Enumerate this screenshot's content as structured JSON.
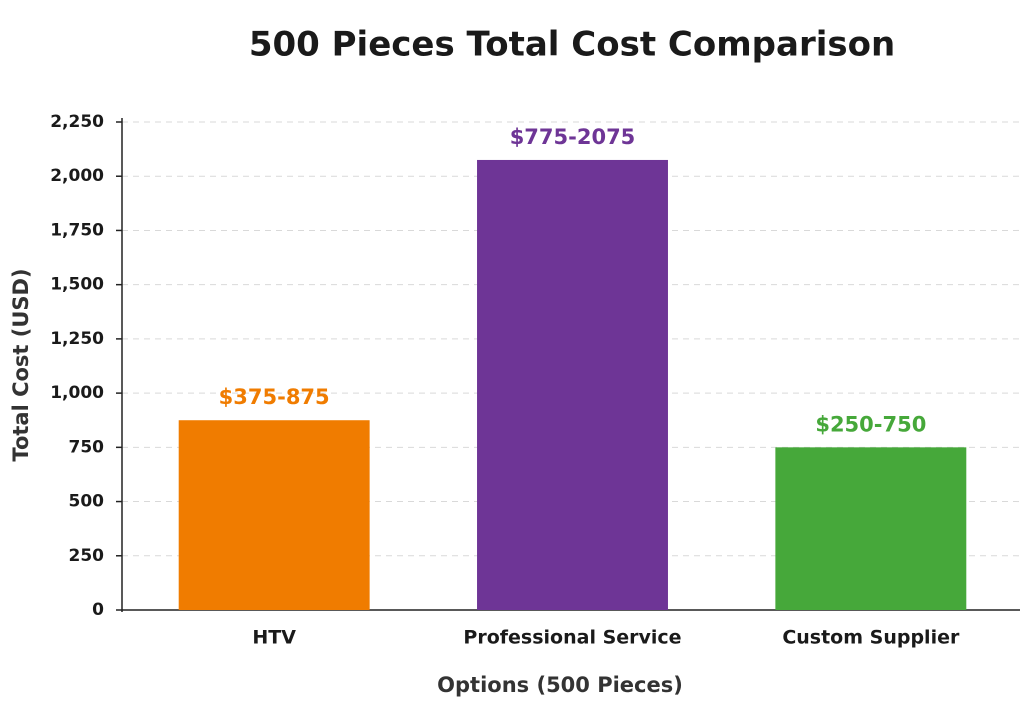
{
  "chart_data": {
    "type": "bar",
    "title": "500 Pieces Total Cost Comparison",
    "x_label": "Options (500 Pieces)",
    "y_label": "Total Cost (USD)",
    "categories": [
      "HTV",
      "Professional Service",
      "Custom Supplier"
    ],
    "values": [
      875,
      2075,
      750
    ],
    "value_labels": [
      "$375-875",
      "$775-2075",
      "$250-750"
    ],
    "colors": [
      "#f07c00",
      "#6e3596",
      "#46a83a"
    ],
    "ylim": [
      0,
      2250
    ],
    "yticks": [
      0,
      250,
      500,
      750,
      {
        "value": 1000,
        "label": "1,000"
      },
      {
        "value": 1250,
        "label": "1,250"
      },
      {
        "value": 1500,
        "label": "1,500"
      },
      {
        "value": 1750,
        "label": "1,750"
      },
      {
        "value": 2000,
        "label": "2,000"
      },
      {
        "value": 2250,
        "label": "2,250"
      }
    ],
    "grid": true
  }
}
